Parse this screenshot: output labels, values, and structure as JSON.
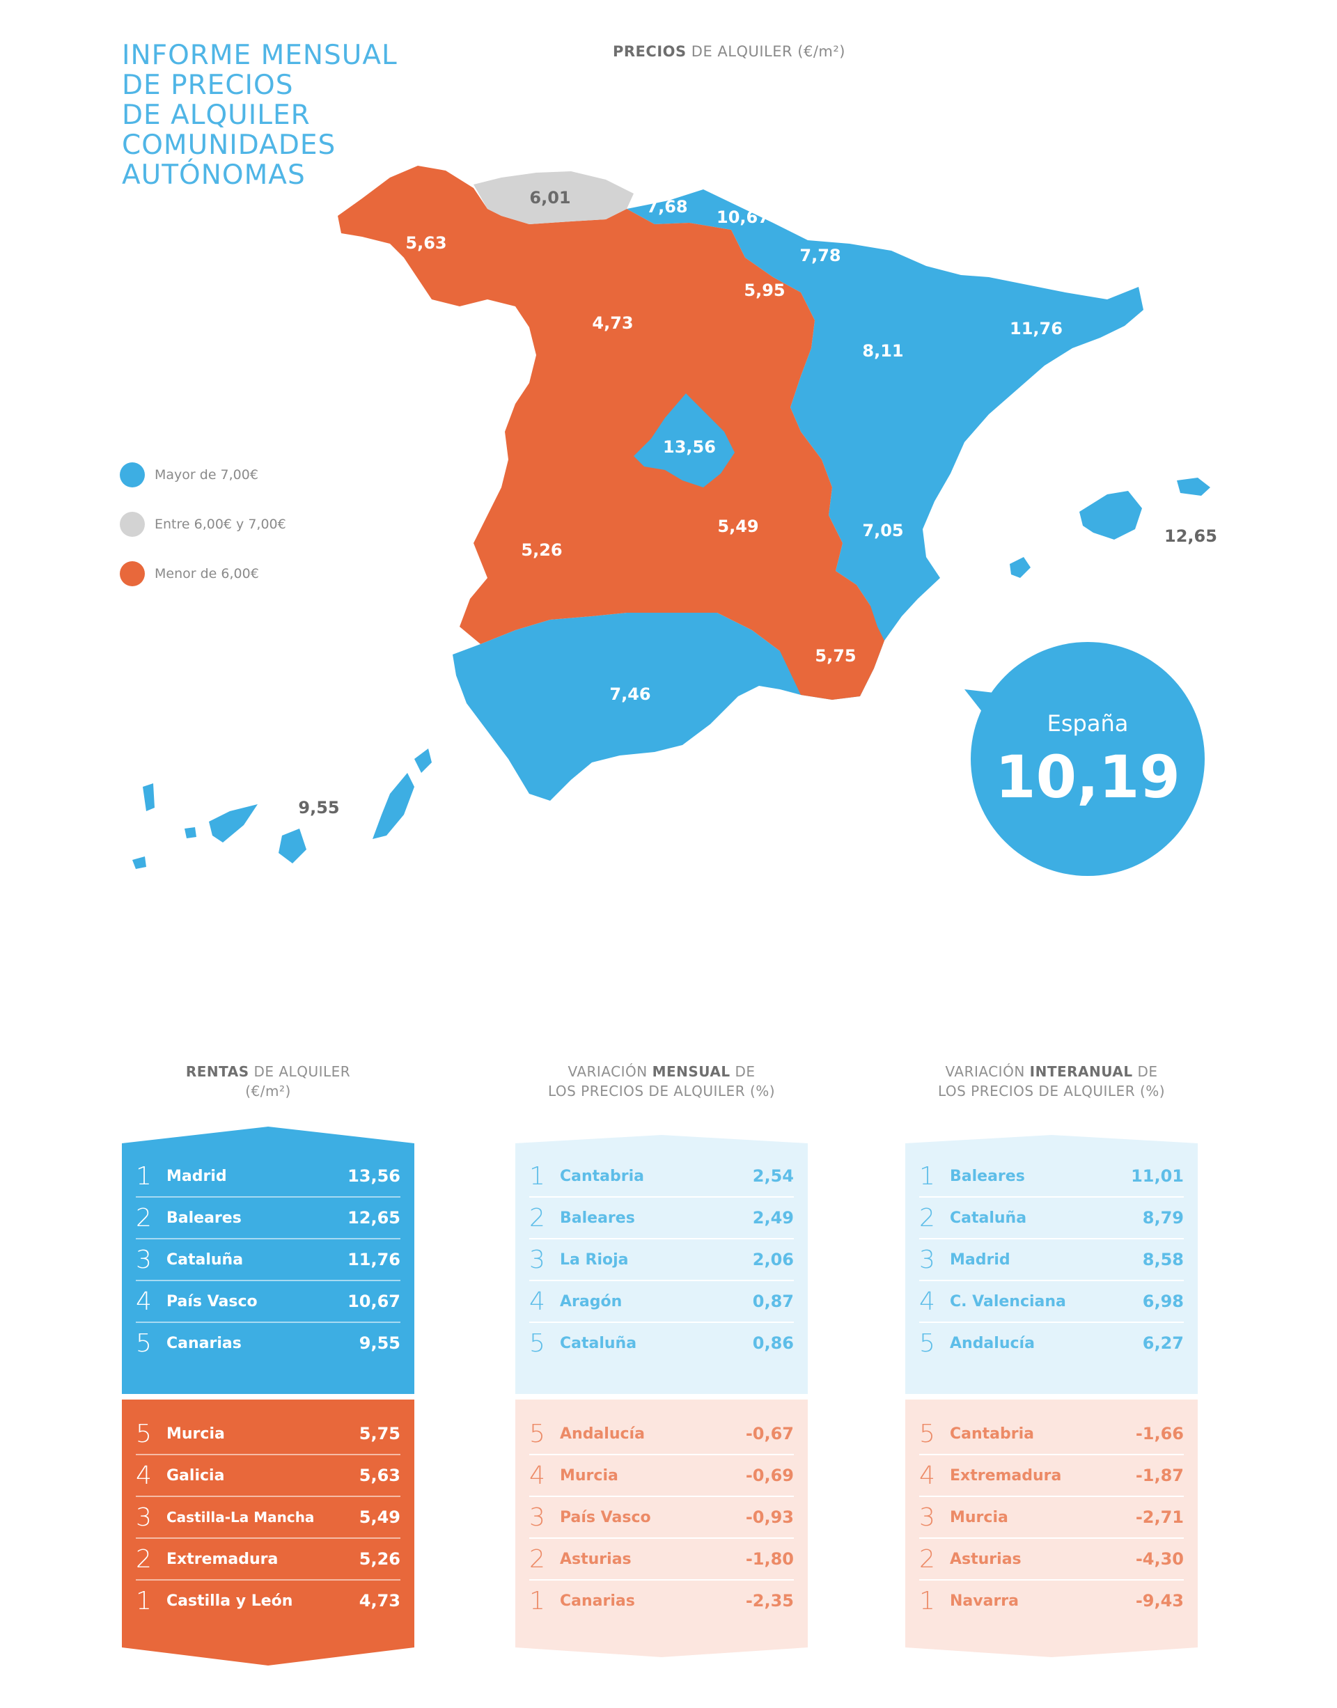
{
  "title_lines": [
    "INFORME MENSUAL",
    "DE PRECIOS",
    "DE ALQUILER",
    "COMUNIDADES",
    "AUTÓNOMAS"
  ],
  "map_title": {
    "bold": "PRECIOS",
    "rest": " DE ALQUILER (€/m²)"
  },
  "legend": [
    {
      "label": "Mayor de 7,00€",
      "color": "#3daee3"
    },
    {
      "label": "Entre 6,00€ y 7,00€",
      "color": "#d3d3d3"
    },
    {
      "label": "Menor de 6,00€",
      "color": "#e8683b"
    }
  ],
  "regions": {
    "galicia": "5,63",
    "asturias": "6,01",
    "cantabria": "7,68",
    "pais_vasco": "10,67",
    "navarra": "7,78",
    "la_rioja": "5,95",
    "castilla_leon": "4,73",
    "aragon": "8,11",
    "cataluna": "11,76",
    "madrid": "13,56",
    "castilla_la_mancha": "5,49",
    "extremadura": "5,26",
    "c_valenciana": "7,05",
    "murcia": "5,75",
    "andalucia": "7,46",
    "baleares": "12,65",
    "canarias": "9,55"
  },
  "spain": {
    "label": "España",
    "value": "10,19"
  },
  "columns": [
    {
      "head_bold": "RENTAS",
      "head_l1_rest": " DE ALQUILER",
      "head_l2": "(€/m²)",
      "bold_first": true,
      "top": [
        {
          "rank": "1",
          "name": "Madrid",
          "value": "13,56"
        },
        {
          "rank": "2",
          "name": "Baleares",
          "value": "12,65"
        },
        {
          "rank": "3",
          "name": "Cataluña",
          "value": "11,76"
        },
        {
          "rank": "4",
          "name": "País Vasco",
          "value": "10,67"
        },
        {
          "rank": "5",
          "name": "Canarias",
          "value": "9,55"
        }
      ],
      "bottom": [
        {
          "rank": "5",
          "name": "Murcia",
          "value": "5,75"
        },
        {
          "rank": "4",
          "name": "Galicia",
          "value": "5,63"
        },
        {
          "rank": "3",
          "name": "Castilla-La Mancha",
          "value": "5,49"
        },
        {
          "rank": "2",
          "name": "Extremadura",
          "value": "5,26"
        },
        {
          "rank": "1",
          "name": "Castilla y León",
          "value": "4,73"
        }
      ]
    },
    {
      "head_pre": "VARIACIÓN ",
      "head_bold": "MENSUAL",
      "head_l1_rest": " DE",
      "head_l2": "LOS PRECIOS DE ALQUILER (%)",
      "top": [
        {
          "rank": "1",
          "name": "Cantabria",
          "value": "2,54"
        },
        {
          "rank": "2",
          "name": "Baleares",
          "value": "2,49"
        },
        {
          "rank": "3",
          "name": "La Rioja",
          "value": "2,06"
        },
        {
          "rank": "4",
          "name": "Aragón",
          "value": "0,87"
        },
        {
          "rank": "5",
          "name": "Cataluña",
          "value": "0,86"
        }
      ],
      "bottom": [
        {
          "rank": "5",
          "name": "Andalucía",
          "value": "-0,67"
        },
        {
          "rank": "4",
          "name": "Murcia",
          "value": "-0,69"
        },
        {
          "rank": "3",
          "name": "País Vasco",
          "value": "-0,93"
        },
        {
          "rank": "2",
          "name": "Asturias",
          "value": "-1,80"
        },
        {
          "rank": "1",
          "name": "Canarias",
          "value": "-2,35"
        }
      ]
    },
    {
      "head_pre": "VARIACIÓN ",
      "head_bold": "INTERANUAL",
      "head_l1_rest": " DE",
      "head_l2": "LOS PRECIOS DE ALQUILER (%)",
      "top": [
        {
          "rank": "1",
          "name": "Baleares",
          "value": "11,01"
        },
        {
          "rank": "2",
          "name": "Cataluña",
          "value": "8,79"
        },
        {
          "rank": "3",
          "name": "Madrid",
          "value": "8,58"
        },
        {
          "rank": "4",
          "name": "C. Valenciana",
          "value": "6,98"
        },
        {
          "rank": "5",
          "name": "Andalucía",
          "value": "6,27"
        }
      ],
      "bottom": [
        {
          "rank": "5",
          "name": "Cantabria",
          "value": "-1,66"
        },
        {
          "rank": "4",
          "name": "Extremadura",
          "value": "-1,87"
        },
        {
          "rank": "3",
          "name": "Murcia",
          "value": "-2,71"
        },
        {
          "rank": "2",
          "name": "Asturias",
          "value": "-4,30"
        },
        {
          "rank": "1",
          "name": "Navarra",
          "value": "-9,43"
        }
      ]
    }
  ]
}
